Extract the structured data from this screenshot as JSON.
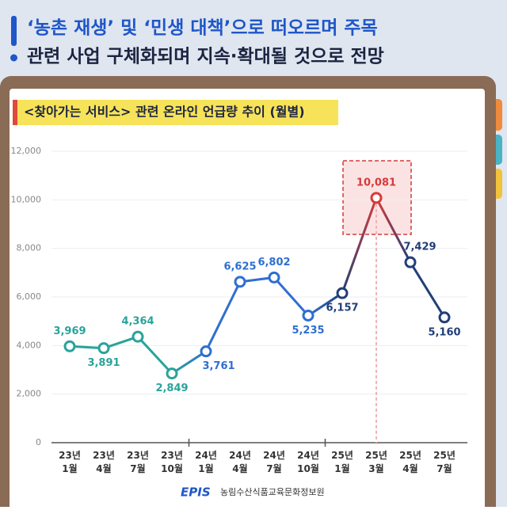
{
  "header": {
    "line1": "‘농촌 재생’ 및 ‘민생 대책’으로 떠오르며 주목",
    "line2": "관련 사업 구체화되며 지속·확대될 것으로 전망"
  },
  "chart_data": {
    "type": "line",
    "title": "<찾아가는 서비스> 관련 온라인 언급량 추이 (월별)",
    "categories": [
      "23년 1월",
      "23년 4월",
      "23년 7월",
      "23년 10월",
      "24년 1월",
      "24년 4월",
      "24년 7월",
      "24년 10월",
      "25년 1월",
      "25년 3월",
      "25년 4월",
      "25년 7월"
    ],
    "series": [
      {
        "values": [
          3969,
          3891,
          4364,
          2849,
          3761,
          6625,
          6802,
          5235,
          6157,
          10081,
          7429,
          5160
        ],
        "value_labels": [
          "3,969",
          "3,891",
          "4,364",
          "2,849",
          "3,761",
          "6,625",
          "6,802",
          "5,235",
          "6,157",
          "10,081",
          "7,429",
          "5,160"
        ],
        "point_colors": [
          "#2aa39a",
          "#2aa39a",
          "#2aa39a",
          "#2aa39a",
          "#2f6fd0",
          "#2f6fd0",
          "#2f6fd0",
          "#2f6fd0",
          "#213f78",
          "#d63b3b",
          "#213f78",
          "#213f78"
        ]
      }
    ],
    "ylim": [
      0,
      12000
    ],
    "yticks": [
      0,
      {
        "value": 2000,
        "label": "2,000"
      },
      {
        "value": 4000,
        "label": "4,000"
      },
      {
        "value": 6000,
        "label": "6,000"
      },
      {
        "value": 8000,
        "label": "8,000"
      },
      {
        "value": 10000,
        "label": "10,000"
      },
      {
        "value": 12000,
        "label": "12,000"
      }
    ],
    "grid": true
  },
  "footer": {
    "logo": "EPIS",
    "org": "농림수산식품교육문화정보원"
  }
}
